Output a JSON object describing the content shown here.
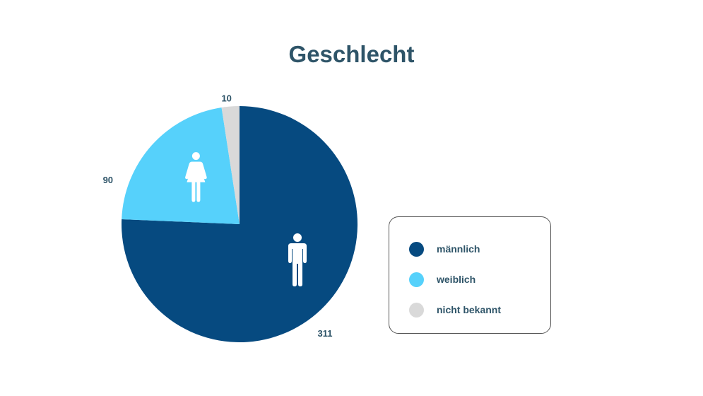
{
  "chart_data": {
    "type": "pie",
    "title": "Geschlecht",
    "categories": [
      "männlich",
      "weiblich",
      "nicht bekannt"
    ],
    "values": [
      311,
      90,
      10
    ],
    "colors": [
      "#064a80",
      "#56d1fb",
      "#d9d9d9"
    ],
    "icons": [
      "male-person-icon",
      "female-person-icon",
      null
    ],
    "legend": "right",
    "start_angle": "12 o'clock",
    "direction": "clockwise"
  }
}
